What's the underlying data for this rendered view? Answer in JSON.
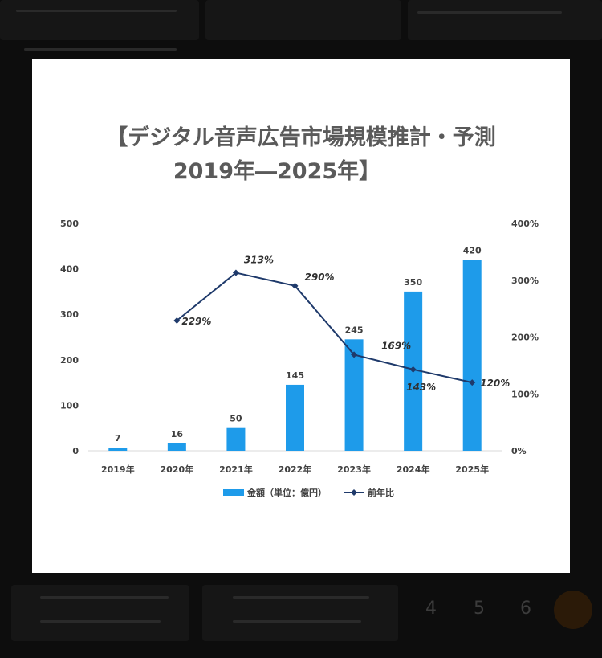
{
  "page": {
    "background_pager": [
      "4",
      "5",
      "6"
    ]
  },
  "colors": {
    "bar": "#1E9BEA",
    "line": "#1F3A6B",
    "title": "#5a5a5a",
    "backdrop": "#0d0d0d"
  },
  "chart_data": {
    "type": "bar",
    "title": "【デジタル音声広告市場規模推計・予測",
    "subtitle": "2019年―2025年】",
    "categories": [
      "2019年",
      "2020年",
      "2021年",
      "2022年",
      "2023年",
      "2024年",
      "2025年"
    ],
    "series": [
      {
        "name": "金額（単位：億円）",
        "type": "bar",
        "axis": "left",
        "values": [
          7,
          16,
          50,
          145,
          245,
          350,
          420
        ]
      },
      {
        "name": "前年比",
        "type": "line",
        "axis": "right",
        "values": [
          null,
          229,
          313,
          290,
          169,
          143,
          120
        ]
      }
    ],
    "bar_labels": [
      "7",
      "16",
      "50",
      "145",
      "245",
      "350",
      "420"
    ],
    "line_labels": [
      "",
      "229%",
      "313%",
      "290%",
      "169%",
      "143%",
      "120%"
    ],
    "y_left": {
      "ticks": [
        "0",
        "100",
        "200",
        "300",
        "400",
        "500"
      ],
      "range": [
        0,
        500
      ]
    },
    "y_right": {
      "ticks": [
        "0%",
        "100%",
        "200%",
        "300%",
        "400%"
      ],
      "range": [
        0,
        400
      ]
    },
    "legend": {
      "position": "bottom",
      "bar_label": "金額（単位：億円）",
      "line_label": "前年比"
    },
    "grid": false
  }
}
